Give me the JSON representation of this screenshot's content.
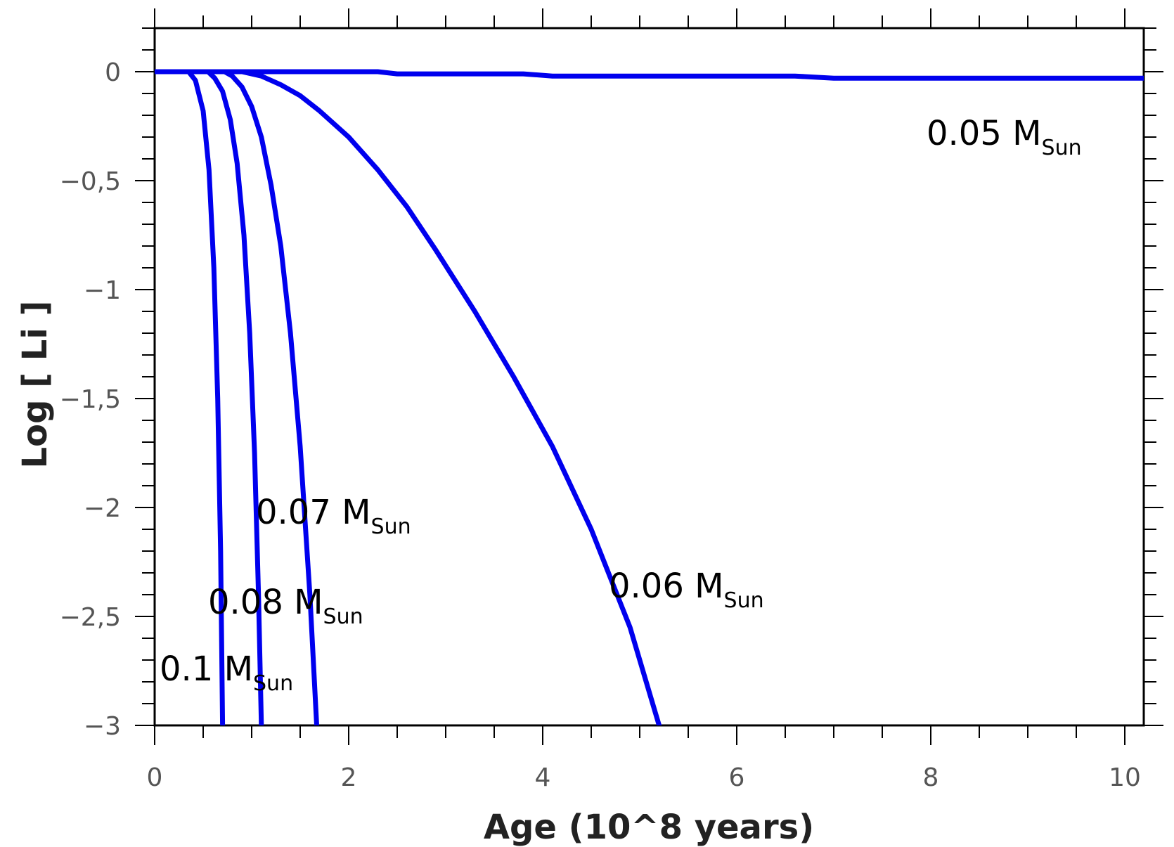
{
  "chart_data": {
    "type": "line",
    "xlabel": "Age (10^8 years)",
    "ylabel": "Log [ Li ]",
    "xlim": [
      0,
      10.2
    ],
    "ylim": [
      -3,
      0.2
    ],
    "xticks": [
      0,
      2,
      4,
      6,
      8,
      10
    ],
    "xtick_labels": [
      "0",
      "2",
      "4",
      "6",
      "8",
      "10"
    ],
    "yticks": [
      0,
      -0.5,
      -1,
      -1.5,
      -2,
      -2.5,
      -3
    ],
    "ytick_labels": [
      "0",
      "−0,5",
      "−1",
      "−1,5",
      "−2",
      "−2,5",
      "−3"
    ],
    "grid": false,
    "line_color": "#0000ee",
    "series": [
      {
        "name": "0.05 M",
        "subscript": "Sun",
        "x": [
          0,
          1.0,
          2.3,
          2.5,
          3.8,
          4.1,
          6.6,
          7.0,
          10.2
        ],
        "y": [
          0,
          0,
          0,
          -0.01,
          -0.01,
          -0.02,
          -0.02,
          -0.03,
          -0.03
        ]
      },
      {
        "name": "0.06 M",
        "subscript": "Sun",
        "x": [
          0,
          0.9,
          1.1,
          1.3,
          1.5,
          1.7,
          2.0,
          2.3,
          2.6,
          2.9,
          3.3,
          3.7,
          4.1,
          4.5,
          4.9,
          5.2
        ],
        "y": [
          0,
          0,
          -0.02,
          -0.06,
          -0.11,
          -0.18,
          -0.3,
          -0.45,
          -0.62,
          -0.82,
          -1.1,
          -1.4,
          -1.72,
          -2.1,
          -2.55,
          -3.0
        ]
      },
      {
        "name": "0.07 M",
        "subscript": "Sun",
        "x": [
          0,
          0.72,
          0.8,
          0.9,
          1.0,
          1.1,
          1.2,
          1.3,
          1.4,
          1.5,
          1.6,
          1.67
        ],
        "y": [
          0,
          0,
          -0.02,
          -0.07,
          -0.16,
          -0.3,
          -0.52,
          -0.8,
          -1.2,
          -1.72,
          -2.4,
          -3.0
        ]
      },
      {
        "name": "0.08 M",
        "subscript": "Sun",
        "x": [
          0,
          0.55,
          0.62,
          0.7,
          0.78,
          0.85,
          0.92,
          0.98,
          1.03,
          1.07,
          1.1
        ],
        "y": [
          0,
          0,
          -0.03,
          -0.09,
          -0.22,
          -0.42,
          -0.75,
          -1.2,
          -1.75,
          -2.4,
          -3.0
        ]
      },
      {
        "name": "0.1 M",
        "subscript": "Sun",
        "x": [
          0,
          0.35,
          0.42,
          0.5,
          0.56,
          0.61,
          0.65,
          0.68,
          0.7
        ],
        "y": [
          0,
          0,
          -0.04,
          -0.18,
          -0.45,
          -0.9,
          -1.5,
          -2.2,
          -3.0
        ]
      }
    ]
  }
}
